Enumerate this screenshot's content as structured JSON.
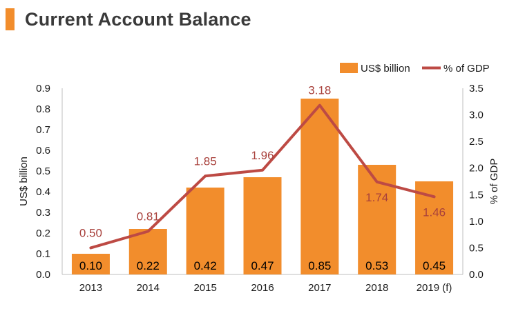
{
  "header": {
    "title": "Current Account Balance"
  },
  "colors": {
    "accent": "#f28d2c",
    "bar": "#f28d2c",
    "line": "#bd4a44",
    "line_label": "#a8403b"
  },
  "chart_data": {
    "type": "bar+line",
    "title": "Current Account Balance",
    "categories": [
      "2013",
      "2014",
      "2015",
      "2016",
      "2017",
      "2018",
      "2019 (f)"
    ],
    "series": [
      {
        "name": "US$ billion",
        "type": "bar",
        "axis": "left",
        "values": [
          0.1,
          0.22,
          0.42,
          0.47,
          0.85,
          0.53,
          0.45
        ],
        "labels": [
          "0.10",
          "0.22",
          "0.42",
          "0.47",
          "0.85",
          "0.53",
          "0.45"
        ]
      },
      {
        "name": "% of GDP",
        "type": "line",
        "axis": "right",
        "values": [
          0.5,
          0.81,
          1.85,
          1.96,
          3.18,
          1.74,
          1.46
        ],
        "labels": [
          "0.50",
          "0.81",
          "1.85",
          "1.96",
          "3.18",
          "1.74",
          "1.46"
        ]
      }
    ],
    "ylabel_left": "US$ billion",
    "ylabel_right": "% of GDP",
    "ylim_left": [
      0,
      0.9
    ],
    "ylim_right": [
      0,
      3.5
    ],
    "yticks_left": [
      "0.0",
      "0.1",
      "0.2",
      "0.3",
      "0.4",
      "0.5",
      "0.6",
      "0.7",
      "0.8",
      "0.9"
    ],
    "yticks_right": [
      "0.0",
      "0.5",
      "1.0",
      "1.5",
      "2.0",
      "2.5",
      "3.0",
      "3.5"
    ],
    "legend": {
      "position": "top-right",
      "entries": [
        "US$ billion",
        "% of GDP"
      ]
    },
    "grid": false
  }
}
